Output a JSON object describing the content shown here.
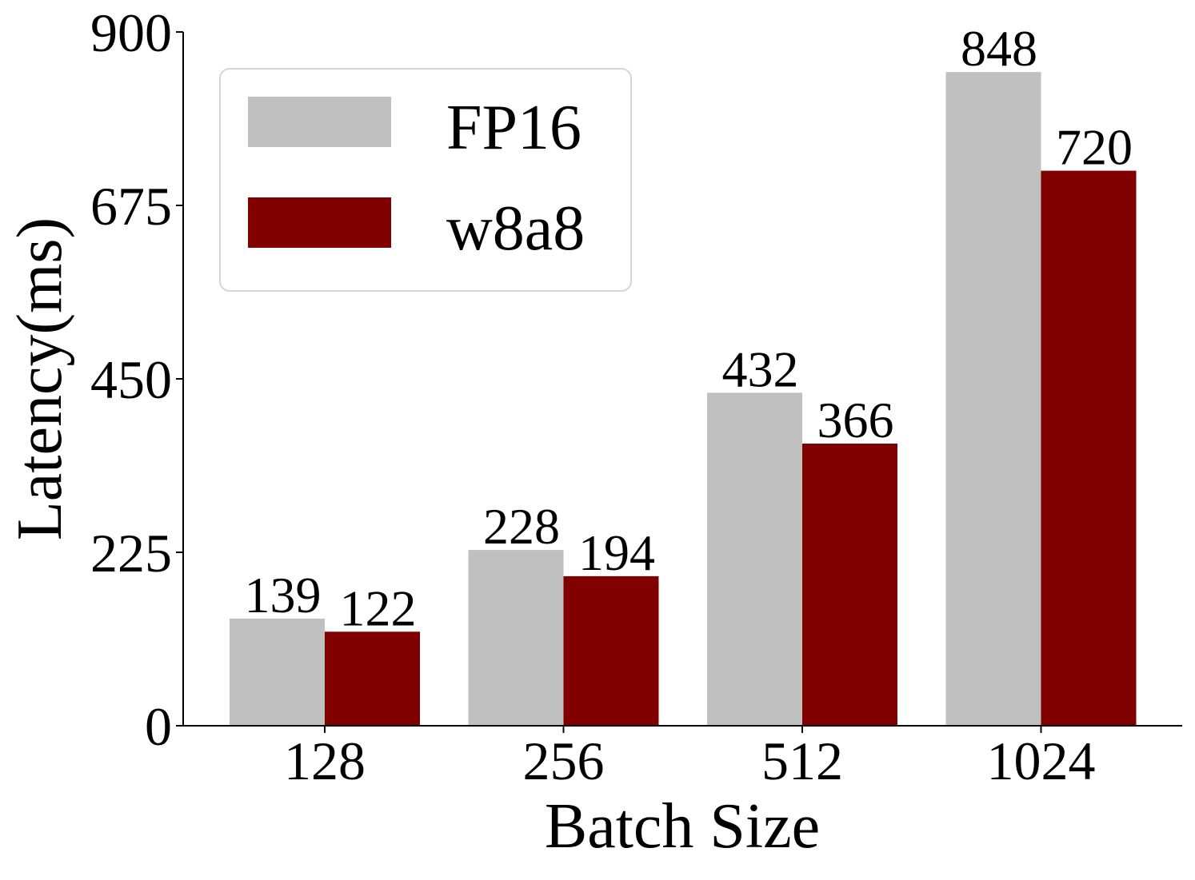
{
  "chart_data": {
    "type": "bar",
    "title": "",
    "xlabel": "Batch Size",
    "ylabel": "Latency(ms)",
    "categories": [
      "128",
      "256",
      "512",
      "1024"
    ],
    "ylim": [
      0,
      900
    ],
    "yticks": [
      0,
      225,
      450,
      675,
      900
    ],
    "grid": false,
    "legend_position": "top-left",
    "series": [
      {
        "name": "FP16",
        "color": "#c0c0c0",
        "values": [
          139,
          228,
          432,
          848
        ],
        "labels": [
          "139",
          "228",
          "432",
          "848"
        ]
      },
      {
        "name": "w8a8",
        "color": "#800000",
        "values": [
          122,
          194,
          366,
          720
        ],
        "labels": [
          "122",
          "194",
          "366",
          "720"
        ]
      }
    ]
  }
}
